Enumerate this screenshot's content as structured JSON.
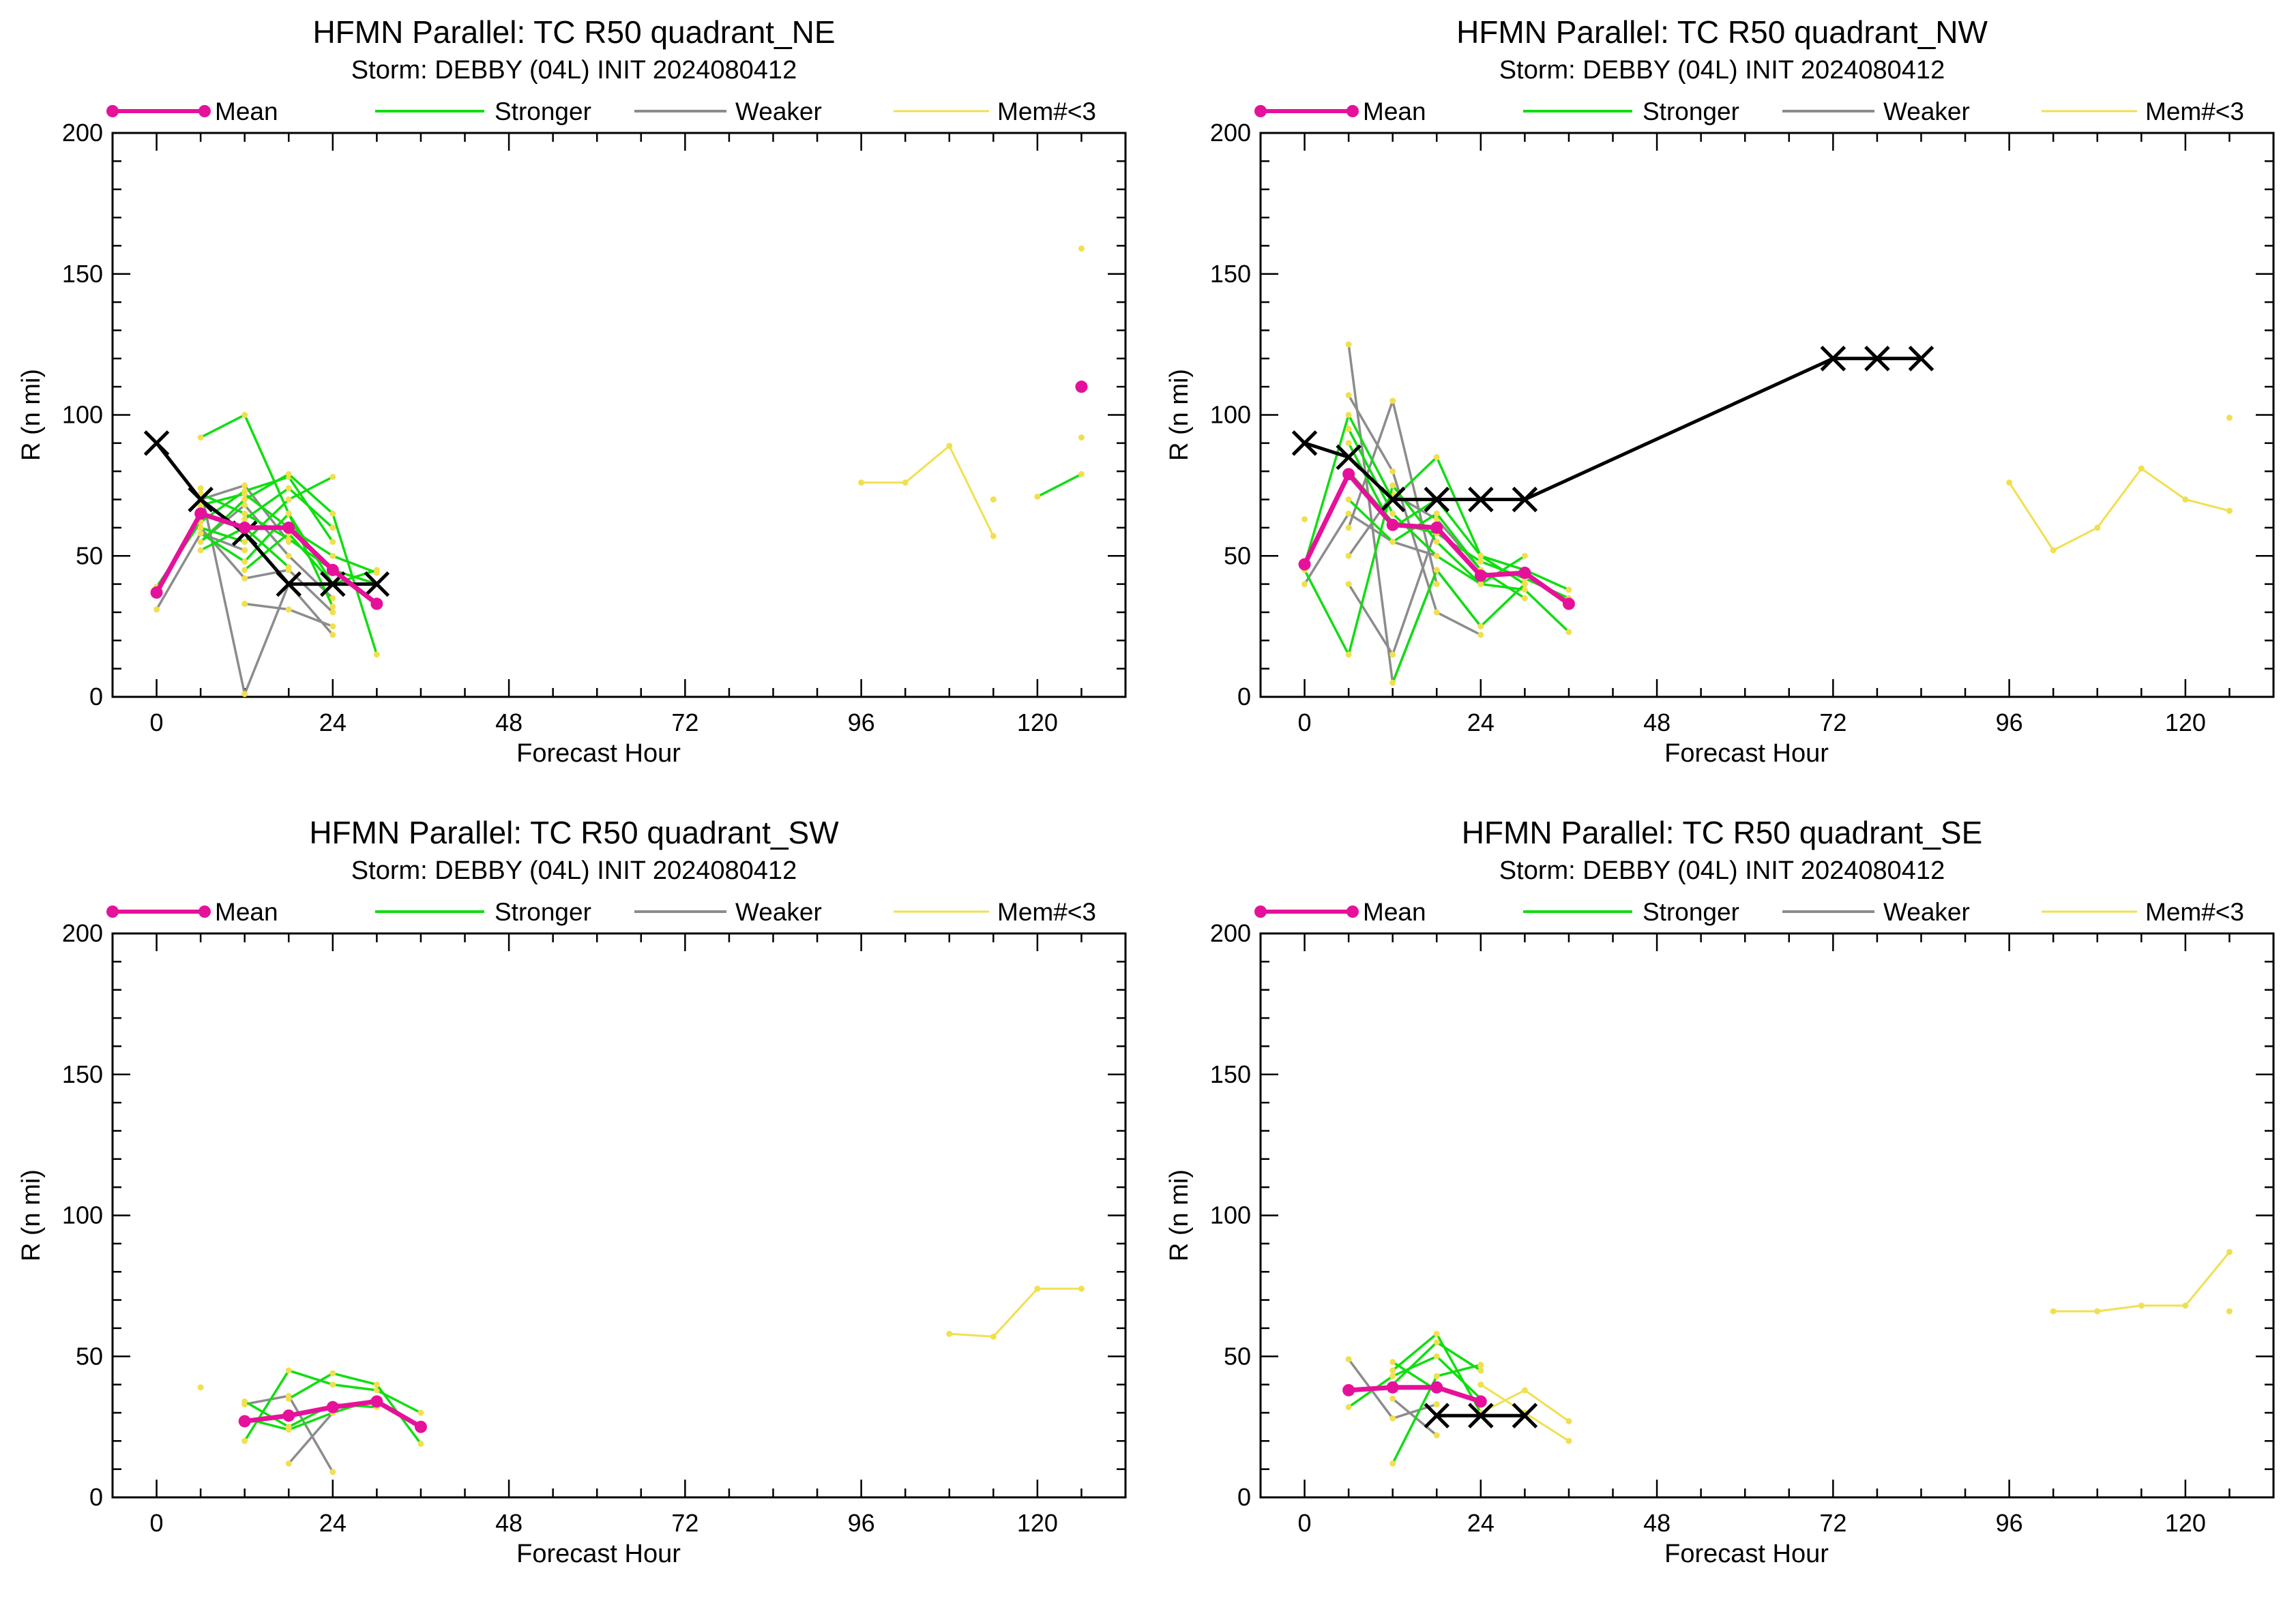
{
  "legend": {
    "mean": "Mean",
    "stronger": "Stronger",
    "weaker": "Weaker",
    "members_lt3": "Mem#<3"
  },
  "colors": {
    "mean": "#e6119a",
    "stronger": "#11dd11",
    "weaker": "#8c8c8c",
    "members_lt3": "#f0e050",
    "best_track": "#000000"
  },
  "chart_data": [
    {
      "type": "line",
      "title": "HFMN Parallel: TC  R50 quadrant_NE",
      "subtitle": "Storm: DEBBY (04L) INIT 2024080412",
      "xlabel": "Forecast Hour",
      "ylabel": "R (n mi)",
      "xlim": [
        -6,
        132
      ],
      "ylim": [
        0,
        200
      ],
      "xticks": [
        0,
        24,
        48,
        72,
        96,
        120
      ],
      "yticks": [
        0,
        50,
        100,
        150,
        200
      ],
      "grid": false,
      "legend_position": "top",
      "mean": {
        "x": [
          0,
          6,
          12,
          18,
          24,
          30
        ],
        "y": [
          37,
          65,
          60,
          60,
          45,
          33
        ]
      },
      "mean_points": [
        {
          "x": 126,
          "y": 110
        }
      ],
      "best_track": {
        "x": [
          0,
          6,
          12,
          18,
          24,
          30
        ],
        "y": [
          90,
          70,
          58,
          40,
          40,
          40
        ]
      },
      "stronger": [
        {
          "x": [
            6,
            12,
            18,
            24
          ],
          "y": [
            92,
            100,
            65,
            40
          ]
        },
        {
          "x": [
            0,
            6,
            12,
            18,
            24
          ],
          "y": [
            39,
            62,
            73,
            78,
            55
          ]
        },
        {
          "x": [
            6,
            12,
            18,
            24,
            30
          ],
          "y": [
            55,
            70,
            79,
            65,
            15
          ]
        },
        {
          "x": [
            6,
            12,
            18,
            24
          ],
          "y": [
            60,
            55,
            70,
            78
          ]
        },
        {
          "x": [
            6,
            12,
            18,
            24,
            30
          ],
          "y": [
            72,
            65,
            56,
            45,
            40
          ]
        },
        {
          "x": [
            6,
            12,
            18,
            24
          ],
          "y": [
            58,
            48,
            65,
            32
          ]
        },
        {
          "x": [
            6,
            12,
            18,
            24,
            30
          ],
          "y": [
            68,
            72,
            60,
            50,
            44
          ]
        },
        {
          "x": [
            12,
            18,
            24
          ],
          "y": [
            63,
            74,
            60
          ]
        },
        {
          "x": [
            6,
            12,
            18
          ],
          "y": [
            52,
            60,
            46
          ]
        },
        {
          "x": [
            12,
            18,
            24,
            30
          ],
          "y": [
            45,
            58,
            40,
            45
          ]
        },
        {
          "x": [
            120,
            126
          ],
          "y": [
            71,
            79
          ]
        }
      ],
      "weaker": [
        {
          "x": [
            6,
            12,
            18,
            24
          ],
          "y": [
            74,
            1,
            40,
            22
          ]
        },
        {
          "x": [
            6,
            12,
            18,
            24
          ],
          "y": [
            60,
            42,
            45,
            30
          ]
        },
        {
          "x": [
            6,
            12,
            18
          ],
          "y": [
            70,
            75,
            55
          ]
        },
        {
          "x": [
            12,
            18,
            24
          ],
          "y": [
            33,
            31,
            25
          ]
        },
        {
          "x": [
            0,
            6,
            12
          ],
          "y": [
            31,
            58,
            52
          ]
        },
        {
          "x": [
            6,
            12,
            18,
            24
          ],
          "y": [
            55,
            68,
            50,
            35
          ]
        }
      ],
      "members_lt3": [
        {
          "x": [
            96,
            102,
            108,
            114
          ],
          "y": [
            76,
            76,
            89,
            57
          ]
        },
        {
          "x": [
            114
          ],
          "y": [
            70
          ]
        },
        {
          "x": [
            126
          ],
          "y": [
            159
          ]
        },
        {
          "x": [
            126
          ],
          "y": [
            92
          ]
        }
      ]
    },
    {
      "type": "line",
      "title": "HFMN Parallel: TC  R50 quadrant_NW",
      "subtitle": "Storm: DEBBY (04L) INIT 2024080412",
      "xlabel": "Forecast Hour",
      "ylabel": "R (n mi)",
      "xlim": [
        -6,
        132
      ],
      "ylim": [
        0,
        200
      ],
      "xticks": [
        0,
        24,
        48,
        72,
        96,
        120
      ],
      "yticks": [
        0,
        50,
        100,
        150,
        200
      ],
      "grid": false,
      "legend_position": "top",
      "mean": {
        "x": [
          0,
          6,
          12,
          18,
          24,
          30,
          36
        ],
        "y": [
          47,
          79,
          61,
          60,
          43,
          44,
          33
        ]
      },
      "mean_points": [],
      "best_track": {
        "x": [
          0,
          6,
          12,
          18,
          24,
          30,
          72,
          78,
          84
        ],
        "y": [
          90,
          85,
          70,
          70,
          70,
          70,
          120,
          120,
          120
        ]
      },
      "stronger": [
        {
          "x": [
            0,
            6,
            12,
            18,
            24,
            30
          ],
          "y": [
            47,
            100,
            70,
            85,
            50,
            40
          ]
        },
        {
          "x": [
            0,
            6,
            12,
            18,
            24,
            30,
            36
          ],
          "y": [
            45,
            15,
            75,
            55,
            40,
            38,
            23
          ]
        },
        {
          "x": [
            6,
            12,
            18,
            24,
            30,
            36
          ],
          "y": [
            90,
            60,
            70,
            50,
            45,
            38
          ]
        },
        {
          "x": [
            6,
            12,
            18,
            24,
            30
          ],
          "y": [
            70,
            55,
            65,
            45,
            35
          ]
        },
        {
          "x": [
            6,
            12,
            18,
            24,
            30
          ],
          "y": [
            95,
            65,
            50,
            40,
            50
          ]
        },
        {
          "x": [
            6,
            12,
            18,
            24,
            30,
            36
          ],
          "y": [
            80,
            62,
            58,
            48,
            42,
            35
          ]
        },
        {
          "x": [
            12,
            18,
            24,
            30
          ],
          "y": [
            5,
            45,
            25,
            40
          ]
        }
      ],
      "weaker": [
        {
          "x": [
            6,
            12,
            18,
            24
          ],
          "y": [
            125,
            5,
            45,
            25
          ]
        },
        {
          "x": [
            6,
            12,
            18,
            24
          ],
          "y": [
            107,
            80,
            30,
            22
          ]
        },
        {
          "x": [
            6,
            12,
            18
          ],
          "y": [
            60,
            105,
            40
          ]
        },
        {
          "x": [
            6,
            12,
            18,
            24
          ],
          "y": [
            50,
            72,
            63,
            45
          ]
        },
        {
          "x": [
            6,
            12,
            18
          ],
          "y": [
            40,
            15,
            60
          ]
        },
        {
          "x": [
            0,
            6,
            12,
            18
          ],
          "y": [
            40,
            65,
            55,
            50
          ]
        }
      ],
      "members_lt3": [
        {
          "x": [
            96,
            102,
            108,
            114,
            120,
            126
          ],
          "y": [
            76,
            52,
            60,
            81,
            70,
            66
          ]
        },
        {
          "x": [
            126
          ],
          "y": [
            99
          ]
        },
        {
          "x": [
            0
          ],
          "y": [
            63
          ]
        }
      ]
    },
    {
      "type": "line",
      "title": "HFMN Parallel: TC  R50 quadrant_SW",
      "subtitle": "Storm: DEBBY (04L) INIT 2024080412",
      "xlabel": "Forecast Hour",
      "ylabel": "R (n mi)",
      "xlim": [
        -6,
        132
      ],
      "ylim": [
        0,
        200
      ],
      "xticks": [
        0,
        24,
        48,
        72,
        96,
        120
      ],
      "yticks": [
        0,
        50,
        100,
        150,
        200
      ],
      "grid": false,
      "legend_position": "top",
      "mean": {
        "x": [
          12,
          18,
          24,
          30,
          36
        ],
        "y": [
          27,
          29,
          32,
          34,
          25
        ]
      },
      "mean_points": [],
      "best_track": {
        "x": [],
        "y": []
      },
      "stronger": [
        {
          "x": [
            12,
            18,
            24,
            30,
            36
          ],
          "y": [
            20,
            45,
            40,
            38,
            30
          ]
        },
        {
          "x": [
            12,
            18,
            24,
            30
          ],
          "y": [
            28,
            24,
            30,
            35
          ]
        },
        {
          "x": [
            18,
            24,
            30,
            36
          ],
          "y": [
            35,
            44,
            40,
            19
          ]
        },
        {
          "x": [
            12,
            18,
            24,
            30
          ],
          "y": [
            34,
            25,
            33,
            32
          ]
        }
      ],
      "weaker": [
        {
          "x": [
            12,
            18,
            24
          ],
          "y": [
            33,
            36,
            9
          ]
        },
        {
          "x": [
            18,
            24
          ],
          "y": [
            12,
            30
          ]
        }
      ],
      "members_lt3": [
        {
          "x": [
            108,
            114,
            120,
            126
          ],
          "y": [
            58,
            57,
            74,
            74
          ]
        },
        {
          "x": [
            6
          ],
          "y": [
            39
          ]
        }
      ]
    },
    {
      "type": "line",
      "title": "HFMN Parallel: TC  R50 quadrant_SE",
      "subtitle": "Storm: DEBBY (04L) INIT 2024080412",
      "xlabel": "Forecast Hour",
      "ylabel": "R (n mi)",
      "xlim": [
        -6,
        132
      ],
      "ylim": [
        0,
        200
      ],
      "xticks": [
        0,
        24,
        48,
        72,
        96,
        120
      ],
      "yticks": [
        0,
        50,
        100,
        150,
        200
      ],
      "grid": false,
      "legend_position": "top",
      "mean": {
        "x": [
          6,
          12,
          18,
          24
        ],
        "y": [
          38,
          39,
          39,
          34
        ]
      },
      "mean_points": [],
      "best_track": {
        "x": [
          18,
          24,
          30
        ],
        "y": [
          29,
          29,
          29
        ]
      },
      "stronger": [
        {
          "x": [
            12,
            18,
            24
          ],
          "y": [
            45,
            58,
            30
          ]
        },
        {
          "x": [
            6,
            12,
            18,
            24
          ],
          "y": [
            32,
            43,
            50,
            35
          ]
        },
        {
          "x": [
            12,
            18,
            24
          ],
          "y": [
            40,
            55,
            45
          ]
        },
        {
          "x": [
            12,
            18,
            24
          ],
          "y": [
            12,
            43,
            47
          ]
        },
        {
          "x": [
            12,
            18
          ],
          "y": [
            48,
            38
          ]
        }
      ],
      "weaker": [
        {
          "x": [
            6,
            12,
            18
          ],
          "y": [
            49,
            28,
            33
          ]
        },
        {
          "x": [
            12,
            18
          ],
          "y": [
            35,
            22
          ]
        }
      ],
      "members_lt3": [
        {
          "x": [
            24,
            30,
            36
          ],
          "y": [
            30,
            38,
            27
          ]
        },
        {
          "x": [
            24,
            30,
            36
          ],
          "y": [
            40,
            30,
            20
          ]
        },
        {
          "x": [
            102,
            108,
            114,
            120,
            126
          ],
          "y": [
            66,
            66,
            68,
            68,
            87
          ]
        },
        {
          "x": [
            126
          ],
          "y": [
            66
          ]
        }
      ]
    }
  ]
}
